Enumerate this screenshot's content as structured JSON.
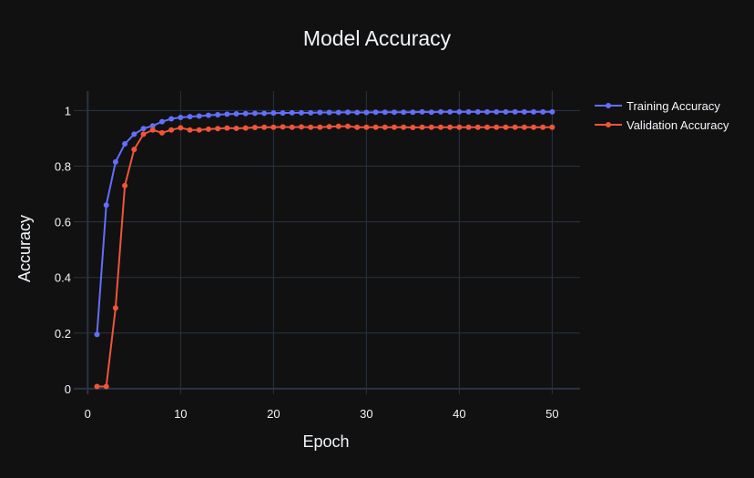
{
  "chart_data": {
    "type": "line",
    "title": "Model Accuracy",
    "xlabel": "Epoch",
    "ylabel": "Accuracy",
    "xlim": [
      -1.5,
      53
    ],
    "ylim": [
      -0.02,
      1.07
    ],
    "xticks": [
      0,
      10,
      20,
      30,
      40,
      50
    ],
    "yticks": [
      0,
      0.2,
      0.4,
      0.6,
      0.8,
      1
    ],
    "ytick_labels": [
      "0",
      "0.2",
      "0.4",
      "0.6",
      "0.8",
      "1"
    ],
    "grid": true,
    "legend_position": "top-right",
    "colors": {
      "background": "#111111",
      "grid": "#283442",
      "text": "#f2f5fa"
    },
    "x": [
      1,
      2,
      3,
      4,
      5,
      6,
      7,
      8,
      9,
      10,
      11,
      12,
      13,
      14,
      15,
      16,
      17,
      18,
      19,
      20,
      21,
      22,
      23,
      24,
      25,
      26,
      27,
      28,
      29,
      30,
      31,
      32,
      33,
      34,
      35,
      36,
      37,
      38,
      39,
      40,
      41,
      42,
      43,
      44,
      45,
      46,
      47,
      48,
      49,
      50
    ],
    "series": [
      {
        "name": "Training Accuracy",
        "color": "#636efa",
        "values": [
          0.195,
          0.66,
          0.815,
          0.88,
          0.915,
          0.935,
          0.945,
          0.96,
          0.97,
          0.975,
          0.978,
          0.98,
          0.983,
          0.985,
          0.987,
          0.988,
          0.989,
          0.99,
          0.99,
          0.991,
          0.991,
          0.992,
          0.992,
          0.992,
          0.993,
          0.993,
          0.993,
          0.994,
          0.993,
          0.993,
          0.994,
          0.994,
          0.994,
          0.994,
          0.994,
          0.995,
          0.994,
          0.995,
          0.995,
          0.995,
          0.995,
          0.995,
          0.995,
          0.995,
          0.995,
          0.995,
          0.995,
          0.995,
          0.995,
          0.995
        ]
      },
      {
        "name": "Validation Accuracy",
        "color": "#ef553b",
        "values": [
          0.008,
          0.008,
          0.29,
          0.73,
          0.86,
          0.915,
          0.93,
          0.92,
          0.93,
          0.938,
          0.93,
          0.93,
          0.933,
          0.935,
          0.937,
          0.936,
          0.937,
          0.939,
          0.94,
          0.94,
          0.941,
          0.94,
          0.941,
          0.94,
          0.94,
          0.942,
          0.943,
          0.943,
          0.94,
          0.94,
          0.94,
          0.94,
          0.94,
          0.94,
          0.939,
          0.94,
          0.94,
          0.94,
          0.94,
          0.94,
          0.94,
          0.94,
          0.94,
          0.94,
          0.94,
          0.94,
          0.94,
          0.94,
          0.94,
          0.94
        ]
      }
    ]
  }
}
